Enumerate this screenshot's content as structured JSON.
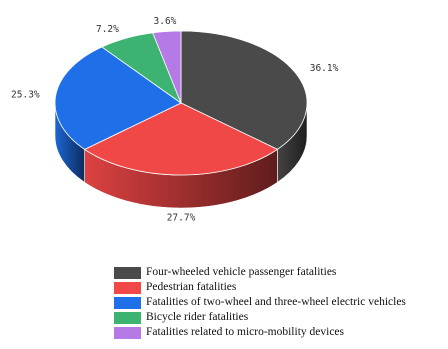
{
  "chart_data": {
    "type": "pie",
    "title": "",
    "legend_position": "bottom",
    "slices": [
      {
        "label": "Four-wheeled vehicle passenger fatalities",
        "value": 36.1,
        "value_label": "36.1%",
        "color": "#4a4a4a"
      },
      {
        "label": "Pedestrian fatalities",
        "value": 27.7,
        "value_label": "27.7%",
        "color": "#f04747"
      },
      {
        "label": "Fatalities of two-wheel and three-wheel electric vehicles",
        "value": 25.3,
        "value_label": "25.3%",
        "color": "#1f6fe8"
      },
      {
        "label": "Bicycle rider fatalities",
        "value": 7.2,
        "value_label": "7.2%",
        "color": "#3cb371"
      },
      {
        "label": "Fatalities related to micro-mobility devices",
        "value": 3.6,
        "value_label": "3.6%",
        "color": "#b57ae6"
      }
    ]
  }
}
